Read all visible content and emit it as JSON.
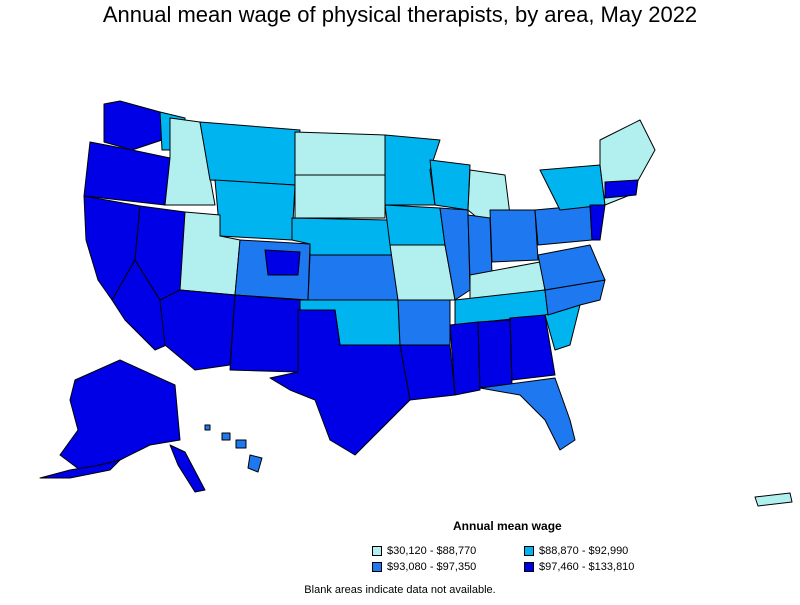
{
  "title": "Annual mean wage of physical therapists, by area, May 2022",
  "legend": {
    "title": "Annual mean wage",
    "items": [
      {
        "label": "$30,120 - $88,770",
        "color": "#b2f0f0"
      },
      {
        "label": "$88,870 - $92,990",
        "color": "#00b4f0"
      },
      {
        "label": "$93,080 - $97,350",
        "color": "#1e78f0"
      },
      {
        "label": "$97,460 - $133,810",
        "color": "#0000e6"
      }
    ]
  },
  "footnote": "Blank areas indicate data not available.",
  "colors": {
    "border": "#000000",
    "blank": "#ffffff"
  }
}
